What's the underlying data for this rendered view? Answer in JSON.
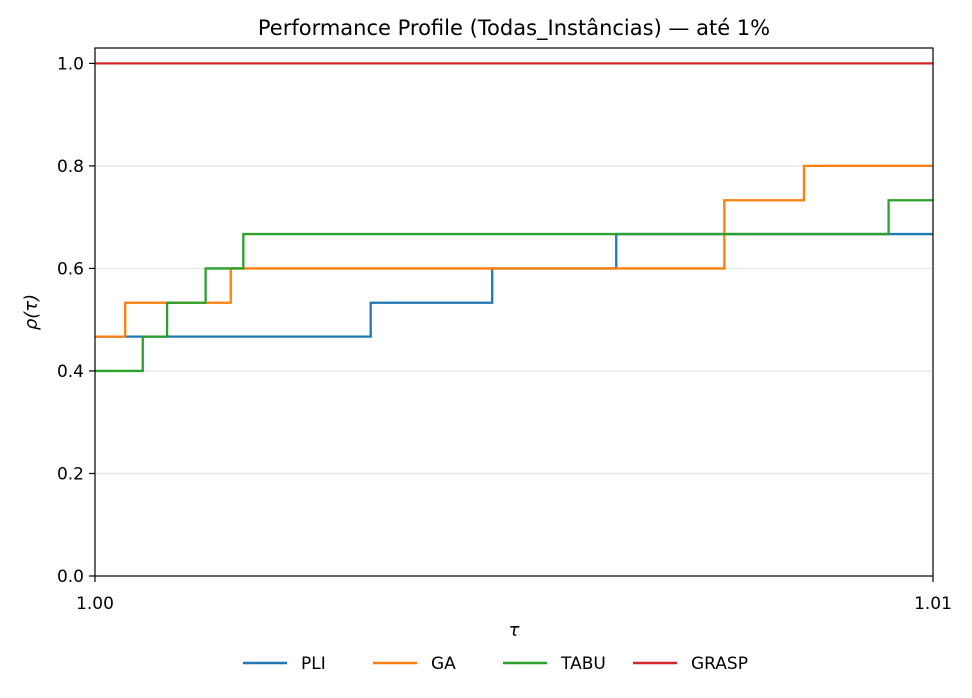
{
  "chart_data": {
    "type": "line",
    "step": true,
    "title": "Performance Profile (Todas_Instâncias) — até 1%",
    "xlabel": "τ",
    "ylabel": "ρ(τ)",
    "xlim": [
      1.0,
      1.01
    ],
    "ylim": [
      0.0,
      1.03
    ],
    "xticks": [
      1.0,
      1.01
    ],
    "xtick_labels": [
      "1.00",
      "1.01"
    ],
    "yticks": [
      0.0,
      0.2,
      0.4,
      0.6,
      0.8,
      1.0
    ],
    "ytick_labels": [
      "0.0",
      "0.2",
      "0.4",
      "0.6",
      "0.8",
      "1.0"
    ],
    "grid": "y",
    "legend_position": "bottom",
    "series": [
      {
        "name": "PLI",
        "color": "#1f77b4",
        "x": [
          1.0,
          1.00036,
          1.00329,
          1.00474,
          1.00622,
          1.01
        ],
        "y": [
          0.467,
          0.467,
          0.533,
          0.6,
          0.667,
          0.667
        ]
      },
      {
        "name": "GA",
        "color": "#ff7f0e",
        "x": [
          1.0,
          1.00036,
          1.00162,
          1.00751,
          1.00846,
          1.01
        ],
        "y": [
          0.467,
          0.533,
          0.6,
          0.733,
          0.8,
          0.8
        ]
      },
      {
        "name": "TABU",
        "color": "#2ca02c",
        "x": [
          1.0,
          1.00057,
          1.00086,
          1.00132,
          1.00177,
          1.00947,
          1.01
        ],
        "y": [
          0.4,
          0.467,
          0.533,
          0.6,
          0.667,
          0.733,
          0.733
        ]
      },
      {
        "name": "GRASP",
        "color": "#d62728",
        "x": [
          1.0,
          1.01
        ],
        "y": [
          1.0,
          1.0
        ]
      }
    ]
  }
}
